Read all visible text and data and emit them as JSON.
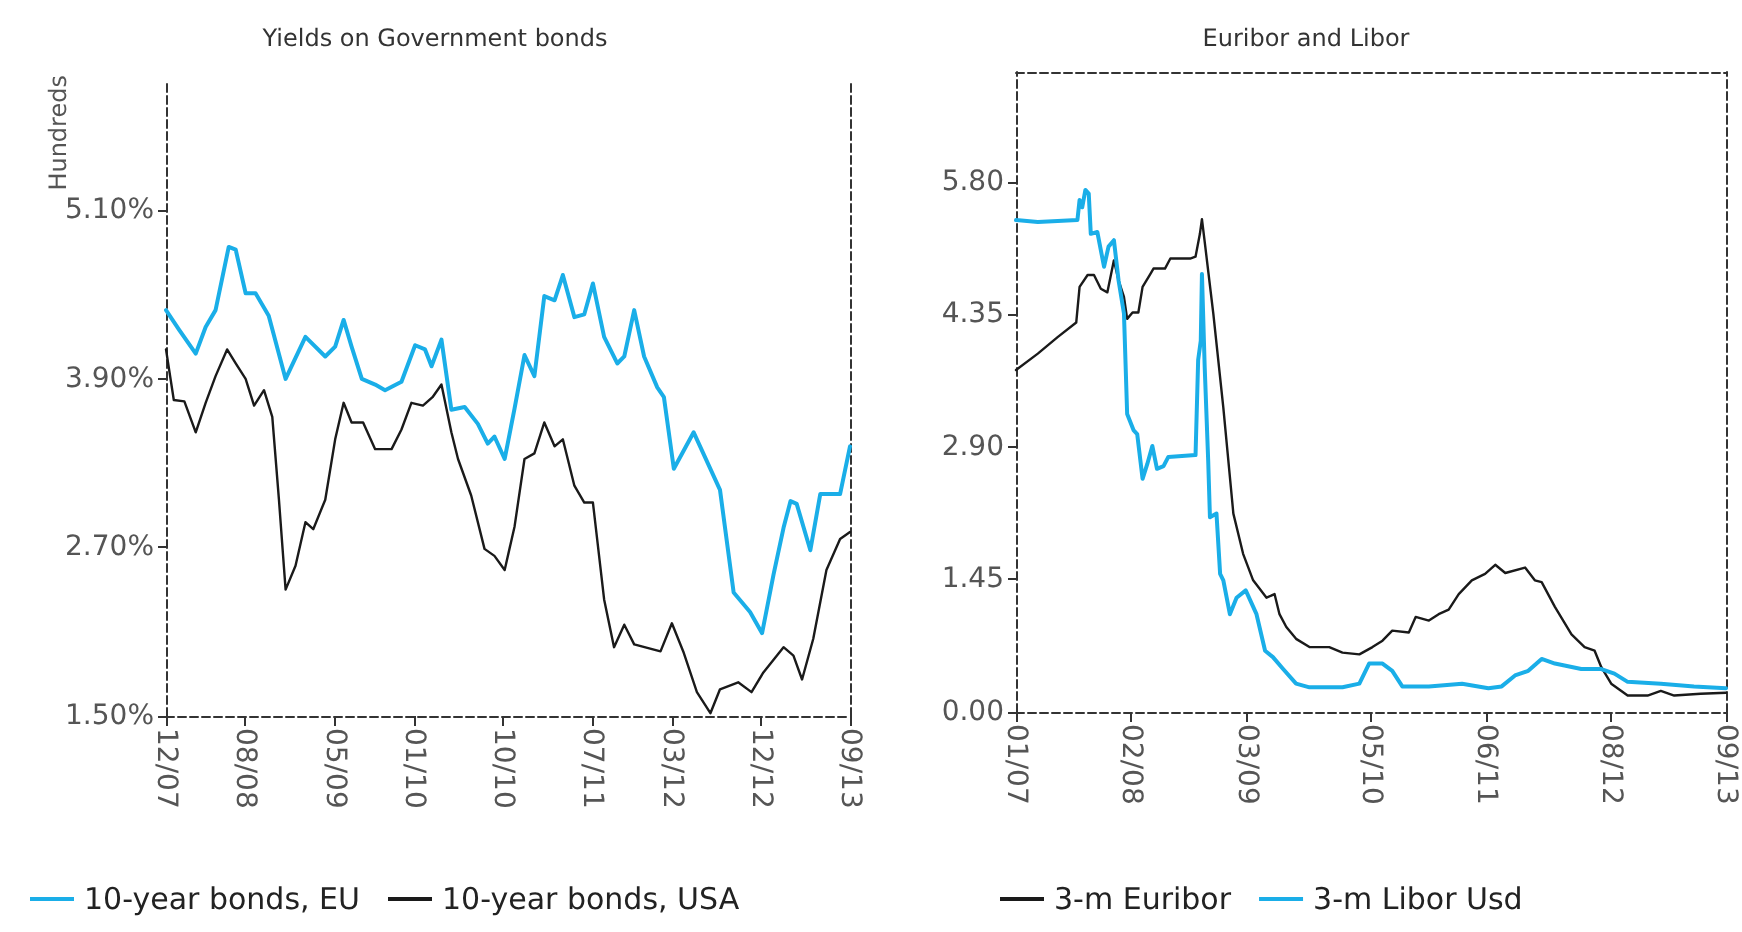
{
  "chart_data": [
    {
      "type": "line",
      "title": "Yields on Government bonds",
      "ylabel": "Hundreds",
      "xlim": [
        "2007-12",
        "2013-09"
      ],
      "xticks": [
        {
          "value": "2007-12",
          "label": "12/07"
        },
        {
          "value": "2008-08",
          "label": "08/08"
        },
        {
          "value": "2009-05",
          "label": "05/09"
        },
        {
          "value": "2010-01",
          "label": "01/10"
        },
        {
          "value": "2010-10",
          "label": "10/10"
        },
        {
          "value": "2011-07",
          "label": "07/11"
        },
        {
          "value": "2012-03",
          "label": "03/12"
        },
        {
          "value": "2012-12",
          "label": "12/12"
        },
        {
          "value": "2013-09",
          "label": "09/13"
        }
      ],
      "ylim": [
        1.5,
        6.0
      ],
      "yticks": [
        {
          "value": 1.5,
          "label": "1.50%"
        },
        {
          "value": 2.7,
          "label": "2.70%"
        },
        {
          "value": 3.9,
          "label": "3.90%"
        },
        {
          "value": 5.1,
          "label": "5.10%"
        }
      ],
      "grid": false,
      "legend": "bottom",
      "marker": "none",
      "line_style": "solid",
      "series": [
        {
          "name": "10-year bonds, EU",
          "color": "#1aaee8",
          "x": [
            "2007-12-01",
            "2008-01-11",
            "2008-03-01",
            "2008-04-01",
            "2008-05-01",
            "2008-06-11",
            "2008-07-02",
            "2008-08-02",
            "2008-09-02",
            "2008-10-12",
            "2008-12-03",
            "2009-02-03",
            "2009-04-03",
            "2009-05-03",
            "2009-05-29",
            "2009-06-23",
            "2009-07-24",
            "2009-09-04",
            "2009-10-04",
            "2009-11-24",
            "2010-01-05",
            "2010-02-05",
            "2010-02-25",
            "2010-03-25",
            "2010-04-25",
            "2010-06-05",
            "2010-07-15",
            "2010-08-15",
            "2010-09-05",
            "2010-10-06",
            "2010-11-06",
            "2010-12-06",
            "2011-01-06",
            "2011-02-06",
            "2011-03-07",
            "2011-04-02",
            "2011-05-07",
            "2011-06-07",
            "2011-07-03",
            "2011-08-07",
            "2011-09-17",
            "2011-10-08",
            "2011-11-08",
            "2011-12-08",
            "2012-01-18",
            "2012-02-08",
            "2012-03-08",
            "2012-05-08",
            "2012-07-28",
            "2012-09-09",
            "2012-10-29",
            "2012-12-05",
            "2013-01-10",
            "2013-02-10",
            "2013-03-01",
            "2013-03-20",
            "2013-05-01",
            "2013-06-01",
            "2013-08-01",
            "2013-09-01"
          ],
          "values": [
            4.39,
            4.25,
            4.08,
            4.27,
            4.39,
            4.84,
            4.82,
            4.51,
            4.51,
            4.35,
            3.9,
            4.2,
            4.06,
            4.13,
            4.32,
            4.13,
            3.9,
            3.86,
            3.82,
            3.88,
            4.14,
            4.11,
            3.99,
            4.18,
            3.68,
            3.7,
            3.58,
            3.44,
            3.49,
            3.33,
            3.69,
            4.07,
            3.92,
            4.49,
            4.46,
            4.64,
            4.34,
            4.36,
            4.58,
            4.2,
            4.01,
            4.06,
            4.39,
            4.06,
            3.84,
            3.77,
            3.26,
            3.52,
            3.11,
            2.38,
            2.24,
            2.09,
            2.51,
            2.84,
            3.03,
            3.01,
            2.68,
            3.08,
            3.08,
            3.42
          ]
        },
        {
          "name": "10-year bonds, USA",
          "color": "#1a1a1a",
          "x": [
            "2007-12-01",
            "2007-12-25",
            "2008-01-27",
            "2008-03-01",
            "2008-04-01",
            "2008-05-01",
            "2008-06-06",
            "2008-07-02",
            "2008-08-02",
            "2008-08-28",
            "2008-09-28",
            "2008-10-23",
            "2008-11-13",
            "2008-12-03",
            "2009-01-03",
            "2009-02-03",
            "2009-02-27",
            "2009-04-03",
            "2009-05-03",
            "2009-05-29",
            "2009-06-23",
            "2009-07-28",
            "2009-09-04",
            "2009-10-24",
            "2009-11-24",
            "2009-12-24",
            "2010-01-29",
            "2010-02-28",
            "2010-03-25",
            "2010-04-25",
            "2010-05-15",
            "2010-06-25",
            "2010-08-05",
            "2010-09-05",
            "2010-10-06",
            "2010-11-06",
            "2010-12-06",
            "2011-01-06",
            "2011-02-06",
            "2011-03-07",
            "2011-04-02",
            "2011-05-07",
            "2011-06-07",
            "2011-07-03",
            "2011-08-07",
            "2011-09-07",
            "2011-10-08",
            "2011-11-08",
            "2012-01-28",
            "2012-03-02",
            "2012-04-08",
            "2012-05-18",
            "2012-06-29",
            "2012-07-28",
            "2012-09-23",
            "2012-11-03",
            "2012-12-09",
            "2013-02-10",
            "2013-03-10",
            "2013-04-06",
            "2013-05-10",
            "2013-06-20",
            "2013-08-01",
            "2013-09-01"
          ],
          "values": [
            4.11,
            3.75,
            3.74,
            3.52,
            3.73,
            3.92,
            4.11,
            4.01,
            3.9,
            3.71,
            3.82,
            3.63,
            3.04,
            2.4,
            2.57,
            2.88,
            2.83,
            3.04,
            3.47,
            3.73,
            3.59,
            3.59,
            3.4,
            3.4,
            3.54,
            3.73,
            3.71,
            3.77,
            3.86,
            3.52,
            3.33,
            3.07,
            2.69,
            2.64,
            2.54,
            2.85,
            3.33,
            3.37,
            3.59,
            3.42,
            3.47,
            3.14,
            3.02,
            3.02,
            2.33,
            1.99,
            2.15,
            2.01,
            1.96,
            2.16,
            1.95,
            1.67,
            1.52,
            1.69,
            1.74,
            1.67,
            1.81,
            1.99,
            1.93,
            1.76,
            2.05,
            2.54,
            2.76,
            2.81
          ]
        }
      ]
    },
    {
      "type": "line",
      "title": "Euribor and Libor",
      "xlim": [
        "2007-01",
        "2013-09"
      ],
      "xticks": [
        {
          "value": "2007-01",
          "label": "01/07"
        },
        {
          "value": "2008-02",
          "label": "02/08"
        },
        {
          "value": "2009-03",
          "label": "03/09"
        },
        {
          "value": "2010-05",
          "label": "05/10"
        },
        {
          "value": "2011-06",
          "label": "06/11"
        },
        {
          "value": "2012-08",
          "label": "08/12"
        },
        {
          "value": "2013-09",
          "label": "09/13"
        }
      ],
      "ylim": [
        0,
        7.0
      ],
      "yticks": [
        {
          "value": 0,
          "label": "0.00"
        },
        {
          "value": 1.45,
          "label": "1.45"
        },
        {
          "value": 2.9,
          "label": "2.90"
        },
        {
          "value": 4.35,
          "label": "4.35"
        },
        {
          "value": 5.8,
          "label": "5.80"
        }
      ],
      "grid": false,
      "legend": "bottom",
      "marker": "none",
      "line_style": "solid",
      "series": [
        {
          "name": "3-m Euribor",
          "color": "#1a1a1a",
          "x": [
            "2007-01-01",
            "2007-03-15",
            "2007-05-22",
            "2007-07-25",
            "2007-08-06",
            "2007-09-03",
            "2007-09-25",
            "2007-10-18",
            "2007-11-10",
            "2007-12-02",
            "2007-12-18",
            "2008-01-06",
            "2008-01-17",
            "2008-02-05",
            "2008-02-25",
            "2008-03-09",
            "2008-04-05",
            "2008-04-16",
            "2008-05-25",
            "2008-06-13",
            "2008-08-20",
            "2008-09-08",
            "2008-09-23",
            "2008-09-30",
            "2008-10-11",
            "2008-11-08",
            "2008-12-12",
            "2009-01-16",
            "2009-02-19",
            "2009-03-23",
            "2009-05-08",
            "2009-06-05",
            "2009-06-22",
            "2009-07-15",
            "2009-08-18",
            "2009-10-03",
            "2009-12-10",
            "2010-01-25",
            "2010-03-22",
            "2010-05-06",
            "2010-06-10",
            "2010-07-13",
            "2010-09-09",
            "2010-10-02",
            "2010-11-17",
            "2010-12-20",
            "2011-01-24",
            "2011-02-28",
            "2011-04-12",
            "2011-05-27",
            "2011-07-01",
            "2011-08-05",
            "2011-10-12",
            "2011-11-15",
            "2011-12-08",
            "2012-01-23",
            "2012-03-19",
            "2012-05-03",
            "2012-06-07",
            "2012-06-30",
            "2012-08-03",
            "2012-09-29",
            "2012-12-06",
            "2013-01-21",
            "2013-03-06",
            "2013-06-05",
            "2013-09-01"
          ],
          "values": [
            3.74,
            3.92,
            4.1,
            4.26,
            4.65,
            4.78,
            4.78,
            4.63,
            4.59,
            4.94,
            4.72,
            4.54,
            4.3,
            4.37,
            4.37,
            4.65,
            4.79,
            4.85,
            4.85,
            4.96,
            4.96,
            4.98,
            5.23,
            5.39,
            5.09,
            4.36,
            3.33,
            2.17,
            1.73,
            1.44,
            1.25,
            1.29,
            1.07,
            0.93,
            0.8,
            0.71,
            0.71,
            0.65,
            0.63,
            0.71,
            0.78,
            0.89,
            0.87,
            1.04,
            1.0,
            1.07,
            1.12,
            1.29,
            1.44,
            1.51,
            1.61,
            1.52,
            1.58,
            1.44,
            1.42,
            1.15,
            0.85,
            0.71,
            0.67,
            0.49,
            0.31,
            0.18,
            0.18,
            0.23,
            0.18,
            0.2,
            0.21
          ]
        },
        {
          "name": "3-m Libor Usd",
          "color": "#1aaee8",
          "x": [
            "2007-01-01",
            "2007-03-15",
            "2007-07-29",
            "2007-08-06",
            "2007-08-15",
            "2007-08-26",
            "2007-09-07",
            "2007-09-14",
            "2007-10-06",
            "2007-10-29",
            "2007-11-14",
            "2007-12-02",
            "2007-12-18",
            "2008-01-06",
            "2008-01-17",
            "2008-02-09",
            "2008-02-21",
            "2008-03-09",
            "2008-03-25",
            "2008-04-12",
            "2008-04-28",
            "2008-05-20",
            "2008-06-06",
            "2008-09-08",
            "2008-09-17",
            "2008-09-26",
            "2008-09-30",
            "2008-10-09",
            "2008-10-21",
            "2008-10-27",
            "2008-11-19",
            "2008-12-01",
            "2008-12-12",
            "2009-01-04",
            "2009-01-27",
            "2009-02-28",
            "2009-04-04",
            "2009-05-03",
            "2009-05-30",
            "2009-07-04",
            "2009-08-18",
            "2009-10-03",
            "2010-01-25",
            "2010-03-22",
            "2010-04-25",
            "2010-06-10",
            "2010-07-13",
            "2010-08-17",
            "2010-11-17",
            "2011-03-09",
            "2011-06-08",
            "2011-07-23",
            "2011-09-08",
            "2011-10-23",
            "2011-12-08",
            "2012-01-23",
            "2012-04-22",
            "2012-06-30",
            "2012-08-14",
            "2012-09-29",
            "2013-01-21",
            "2013-05-13",
            "2013-09-01"
          ],
          "values": [
            5.38,
            5.36,
            5.38,
            5.6,
            5.52,
            5.71,
            5.67,
            5.23,
            5.25,
            4.87,
            5.09,
            5.16,
            4.72,
            4.36,
            3.26,
            3.08,
            3.04,
            2.55,
            2.71,
            2.91,
            2.66,
            2.69,
            2.79,
            2.81,
            3.85,
            4.06,
            4.79,
            3.77,
            2.75,
            2.13,
            2.17,
            1.51,
            1.44,
            1.07,
            1.25,
            1.33,
            1.07,
            0.67,
            0.6,
            0.47,
            0.31,
            0.27,
            0.27,
            0.31,
            0.53,
            0.53,
            0.45,
            0.28,
            0.28,
            0.31,
            0.26,
            0.28,
            0.4,
            0.45,
            0.58,
            0.53,
            0.47,
            0.47,
            0.42,
            0.33,
            0.31,
            0.28,
            0.26
          ]
        }
      ]
    }
  ]
}
